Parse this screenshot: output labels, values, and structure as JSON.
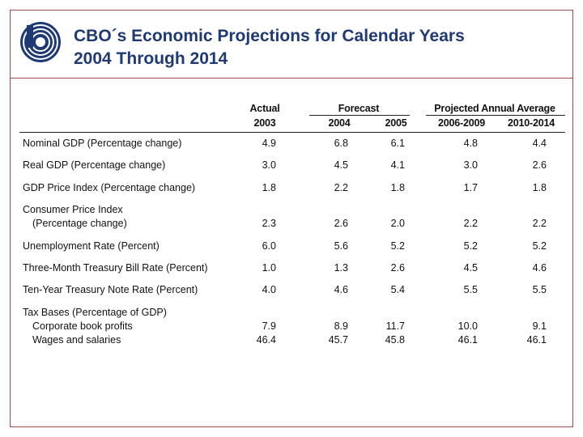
{
  "title": {
    "line1": "CBO´s Economic Projections for Calendar Years",
    "line2": "2004 Through 2014"
  },
  "logo": {
    "icon": "cbo-logo-icon",
    "color": "#1f3a73"
  },
  "table": {
    "group_headers": {
      "actual": "Actual",
      "forecast": "Forecast",
      "projected": "Projected Annual Average"
    },
    "columns": [
      "2003",
      "2004",
      "2005",
      "2006-2009",
      "2010-2014"
    ],
    "rows": [
      {
        "label": "Nominal GDP (Percentage change)",
        "values": [
          "4.9",
          "6.8",
          "6.1",
          "4.8",
          "4.4"
        ]
      },
      {
        "label": "Real GDP (Percentage change)",
        "values": [
          "3.0",
          "4.5",
          "4.1",
          "3.0",
          "2.6"
        ]
      },
      {
        "label": "GDP Price Index (Percentage change)",
        "values": [
          "1.8",
          "2.2",
          "1.8",
          "1.7",
          "1.8"
        ]
      },
      {
        "label": "Consumer Price Index",
        "sublabel": "(Percentage change)",
        "values": [
          "2.3",
          "2.6",
          "2.0",
          "2.2",
          "2.2"
        ]
      },
      {
        "label": "Unemployment Rate (Percent)",
        "values": [
          "6.0",
          "5.6",
          "5.2",
          "5.2",
          "5.2"
        ]
      },
      {
        "label": "Three-Month Treasury Bill Rate (Percent)",
        "values": [
          "1.0",
          "1.3",
          "2.6",
          "4.5",
          "4.6"
        ]
      },
      {
        "label": "Ten-Year Treasury Note Rate (Percent)",
        "values": [
          "4.0",
          "4.6",
          "5.4",
          "5.5",
          "5.5"
        ]
      },
      {
        "label": "Tax Bases (Percentage of GDP)",
        "values": []
      },
      {
        "label": "Corporate book profits",
        "indent": true,
        "values": [
          "7.9",
          "8.9",
          "11.7",
          "10.0",
          "9.1"
        ]
      },
      {
        "label": "Wages and salaries",
        "indent": true,
        "values": [
          "46.4",
          "45.7",
          "45.8",
          "46.1",
          "46.1"
        ]
      }
    ]
  }
}
